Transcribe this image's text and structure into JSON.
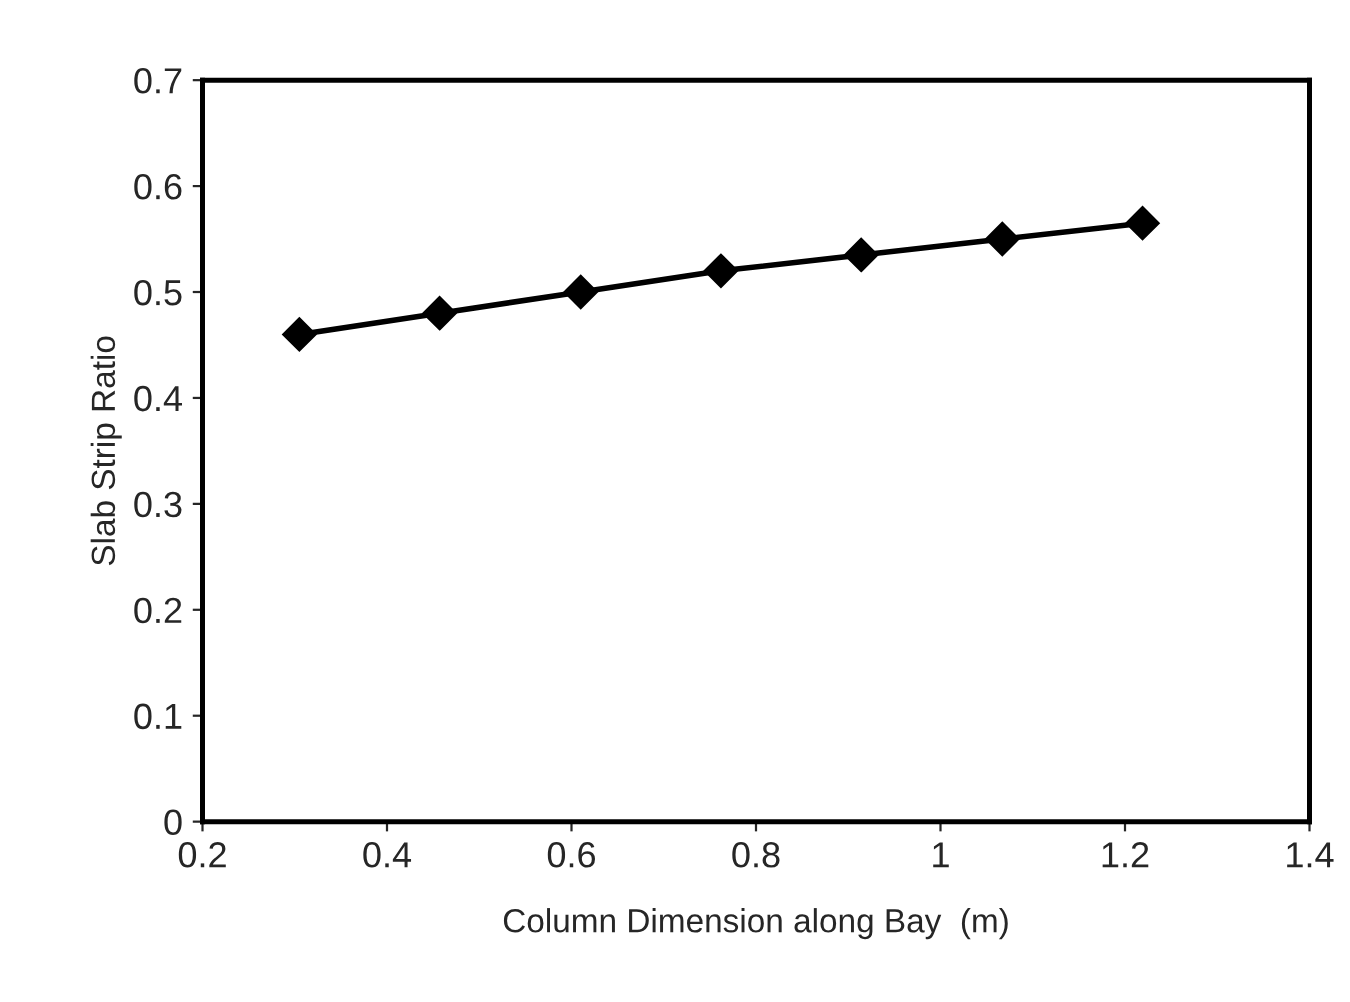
{
  "chart_data": {
    "type": "line",
    "xlabel": "Column Dimension along Bay  (m)",
    "ylabel": "Slab Strip Ratio",
    "x": [
      0.305,
      0.457,
      0.61,
      0.762,
      0.914,
      1.067,
      1.219
    ],
    "series": [
      {
        "color": "#000000",
        "values": [
          0.46,
          0.48,
          0.5,
          0.52,
          0.535,
          0.55,
          0.565
        ]
      }
    ],
    "xlim": [
      0.2,
      1.4
    ],
    "xticks": [
      0.2,
      0.4,
      0.6,
      0.8,
      1,
      1.2,
      1.4
    ],
    "ylim": [
      0,
      0.7
    ],
    "yticks": [
      0,
      0.1,
      0.2,
      0.3,
      0.4,
      0.5,
      0.6,
      0.7
    ],
    "grid": false,
    "legend": false,
    "marker": "diamond",
    "line_style": "solid"
  }
}
